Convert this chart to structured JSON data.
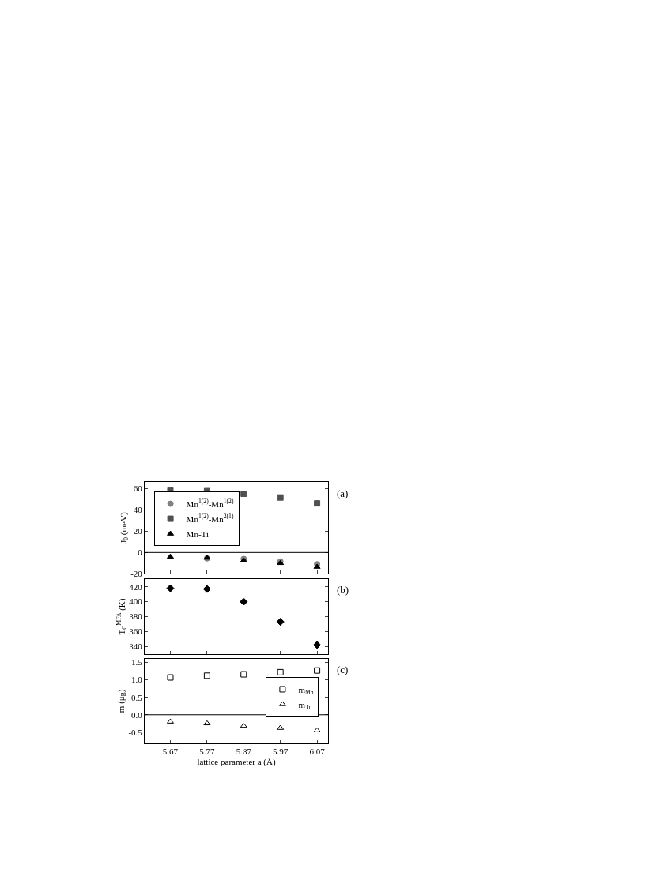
{
  "chart_data": [
    {
      "type": "scatter",
      "ylabel": "J$_{0}$ (meV)",
      "x": [
        5.67,
        5.77,
        5.87,
        5.97,
        6.07
      ],
      "xlim": [
        5.6,
        6.1
      ],
      "xticks": [
        {
          "value": 5.67,
          "label": null
        },
        {
          "value": 5.77,
          "label": null
        },
        {
          "value": 5.87,
          "label": null
        },
        {
          "value": 5.97,
          "label": null
        },
        {
          "value": 6.07,
          "label": null
        }
      ],
      "ylim": [
        -20,
        66
      ],
      "yticks": [
        -20,
        0,
        20,
        40,
        60
      ],
      "tick_labels": "y",
      "legend": "left",
      "annotations": [
        "(a)"
      ],
      "ref_lines": [
        {
          "axis": "y",
          "value": 0,
          "color": "#000000"
        }
      ],
      "series": [
        {
          "name": "Mn$^{1(2)}$-Mn$^{1(2)}$",
          "color": "#808080",
          "marker": "circle",
          "values": [
            null,
            -5.5,
            -6,
            -8.5,
            -11
          ]
        },
        {
          "name": "Mn$^{1(2)}$-Mn$^{2(1)}$",
          "color": "#505050",
          "marker": "square",
          "values": [
            58,
            57.5,
            55,
            51.5,
            46
          ]
        },
        {
          "name": "Mn-Ti",
          "color": "#000000",
          "marker": "triangle",
          "values": [
            -4,
            -5,
            -7.5,
            -10,
            -13.5
          ]
        }
      ]
    },
    {
      "type": "scatter",
      "ylabel": "T$_{C}$$^{MFA}$ (K)",
      "x": [
        5.67,
        5.77,
        5.87,
        5.97,
        6.07
      ],
      "xlim": [
        5.6,
        6.1
      ],
      "xticks": [
        {
          "value": 5.67,
          "label": null
        },
        {
          "value": 5.77,
          "label": null
        },
        {
          "value": 5.87,
          "label": null
        },
        {
          "value": 5.97,
          "label": null
        },
        {
          "value": 6.07,
          "label": null
        }
      ],
      "ylim": [
        330,
        430
      ],
      "yticks": [
        340,
        360,
        380,
        400,
        420
      ],
      "tick_labels": "y",
      "annotations": [
        "(b)"
      ],
      "series": [
        {
          "color": "#000000",
          "marker": "diamond",
          "values": [
            418,
            417,
            400,
            373,
            342
          ]
        }
      ]
    },
    {
      "type": "scatter",
      "xlabel": "lattice parameter a (Å)",
      "ylabel": "m (μ$_{B}$)",
      "x": [
        5.67,
        5.77,
        5.87,
        5.97,
        6.07
      ],
      "xlim": [
        5.6,
        6.1
      ],
      "xticks": [
        5.67,
        5.77,
        5.87,
        5.97,
        6.07
      ],
      "ylim": [
        -0.82,
        1.61
      ],
      "yticks": [
        -0.5,
        {
          "value": 0,
          "label": "0.0"
        },
        0.5,
        {
          "value": 1,
          "label": "1.0"
        },
        1.5
      ],
      "legend": "right",
      "annotations": [
        "(c)"
      ],
      "ref_lines": [
        {
          "axis": "y",
          "value": 0,
          "color": "#000000"
        }
      ],
      "series": [
        {
          "name": "m$_{Mn}$",
          "color": "#000000",
          "marker": "square-open",
          "values": [
            1.07,
            1.12,
            1.16,
            1.22,
            1.27
          ]
        },
        {
          "name": "m$_{Ti}$",
          "color": "#000000",
          "marker": "triangle-open",
          "values": [
            -0.2,
            -0.25,
            -0.32,
            -0.38,
            -0.45
          ]
        }
      ]
    }
  ]
}
